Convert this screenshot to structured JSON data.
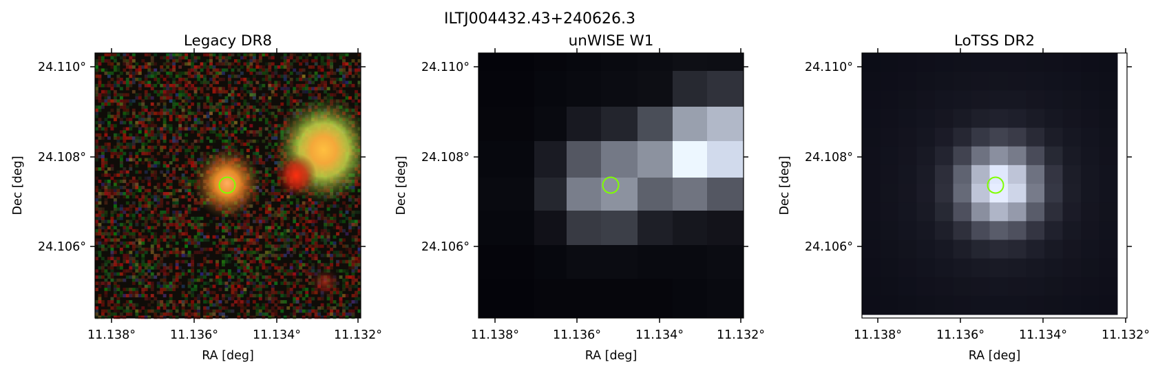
{
  "figure": {
    "title": "ILTJ004432.43+240626.3"
  },
  "colors": {
    "marker_circle": "#7fff00",
    "axis": "#000000",
    "background": "#ffffff"
  },
  "panels": [
    {
      "title": "Legacy DR8",
      "image_kind": "rgb-noise",
      "xlabel": "RA [deg]",
      "ylabel": "Dec [deg]",
      "xticks": [
        "11.138°",
        "11.136°",
        "11.134°",
        "11.132°"
      ],
      "yticks": [
        "24.110°",
        "24.108°",
        "24.106°"
      ]
    },
    {
      "title": "unWISE W1",
      "image_kind": "gray-blocks",
      "xlabel": "RA [deg]",
      "ylabel": "Dec [deg]",
      "xticks": [
        "11.138°",
        "11.136°",
        "11.134°",
        "11.132°"
      ],
      "yticks": [
        "24.110°",
        "24.108°",
        "24.106°"
      ]
    },
    {
      "title": "LoTSS DR2",
      "image_kind": "gray-grid",
      "xlabel": "RA [deg]",
      "ylabel": "Dec [deg]",
      "xticks": [
        "11.138°",
        "11.136°",
        "11.134°",
        "11.132°"
      ],
      "yticks": [
        "24.110°",
        "24.108°",
        "24.106°"
      ]
    }
  ]
}
